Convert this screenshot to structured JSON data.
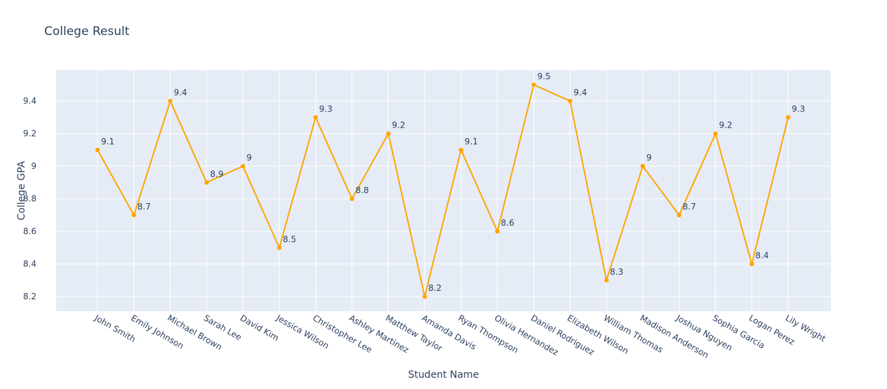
{
  "chart_data": {
    "type": "line",
    "title": "College Result",
    "xlabel": "Student Name",
    "ylabel": "College GPA",
    "categories": [
      "John Smith",
      "Emily Johnson",
      "Michael Brown",
      "Sarah Lee",
      "David Kim",
      "Jessica Wilson",
      "Christopher Lee",
      "Ashley Martinez",
      "Matthew Taylor",
      "Amanda Davis",
      "Ryan Thompson",
      "Olivia Hernandez",
      "Daniel Rodriguez",
      "Elizabeth Wilson",
      "William Thomas",
      "Madison Anderson",
      "Joshua Nguyen",
      "Sophia Garcia",
      "Logan Perez",
      "Lily Wright"
    ],
    "values": [
      9.1,
      8.7,
      9.4,
      8.9,
      9.0,
      8.5,
      9.3,
      8.8,
      9.2,
      8.2,
      9.1,
      8.6,
      9.5,
      9.4,
      8.3,
      9.0,
      8.7,
      9.2,
      8.4,
      9.3
    ],
    "data_labels": [
      "9.1",
      "8.7",
      "9.4",
      "8.9",
      "9",
      "8.5",
      "9.3",
      "8.8",
      "9.2",
      "8.2",
      "9.1",
      "8.6",
      "9.5",
      "9.4",
      "8.3",
      "9",
      "8.7",
      "9.2",
      "8.4",
      "9.3"
    ],
    "ylim": [
      8.11,
      9.59
    ],
    "yticks": [
      8.2,
      8.4,
      8.6,
      8.8,
      9.0,
      9.2,
      9.4
    ],
    "ytick_labels": [
      "8.2",
      "8.4",
      "8.6",
      "8.8",
      "9",
      "9.2",
      "9.4"
    ],
    "grid": true,
    "legend": false,
    "colors": {
      "line": "#FFA500",
      "plot_bg": "#E5ECF6",
      "grid": "#FFFFFF",
      "text": "#2A3F5F",
      "title": "#2A3F5F"
    }
  }
}
